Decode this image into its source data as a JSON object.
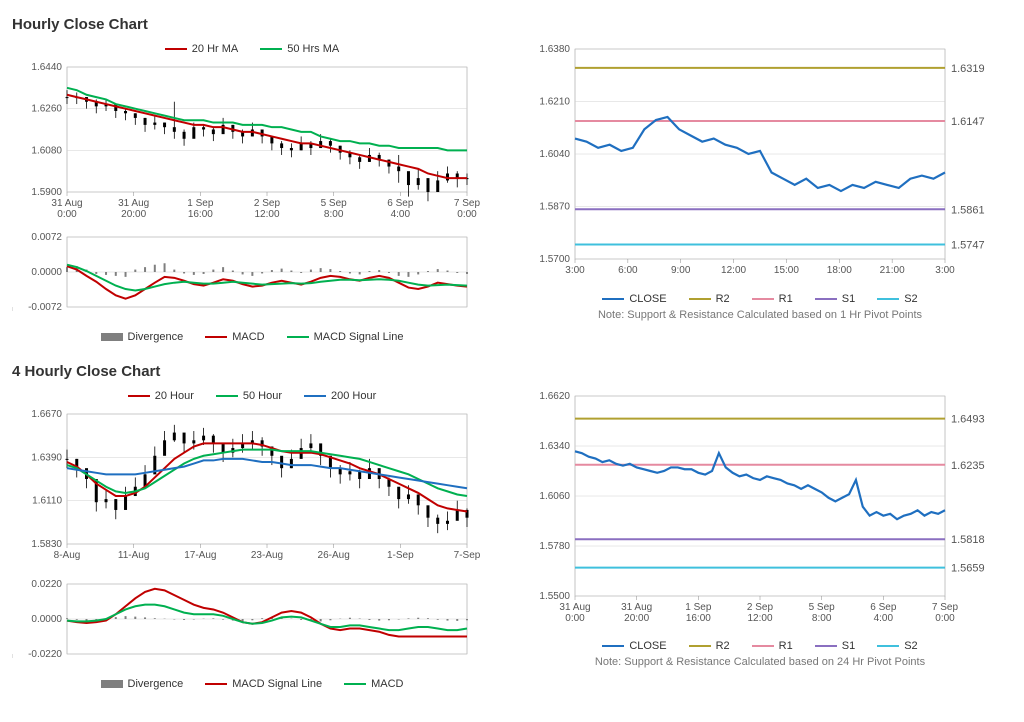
{
  "colors": {
    "red": "#c00000",
    "green": "#00b050",
    "blue": "#1f6fc0",
    "olive": "#b0a030",
    "pink": "#e58aa0",
    "violet": "#8a6fc0",
    "cyan": "#3fc0dd",
    "grey": "#7f7f7f",
    "grid": "#d0d0d0",
    "text": "#555",
    "black": "#000"
  },
  "section1": {
    "title": "Hourly Close Chart",
    "price": {
      "legend": [
        {
          "label": "20 Hr MA",
          "color": "red"
        },
        {
          "label": "50 Hrs MA",
          "color": "green"
        }
      ],
      "ylim": [
        1.59,
        1.644
      ],
      "ytick": 0.018,
      "xticks": [
        "31 Aug\n0:00",
        "31 Aug\n20:00",
        "1 Sep\n16:00",
        "2 Sep\n12:00",
        "5 Sep\n8:00",
        "6 Sep\n4:00",
        "7 Sep\n0:00"
      ],
      "close": [
        1.631,
        1.631,
        1.629,
        1.627,
        1.628,
        1.625,
        1.624,
        1.622,
        1.619,
        1.62,
        1.618,
        1.616,
        1.613,
        1.618,
        1.617,
        1.615,
        1.619,
        1.616,
        1.614,
        1.617,
        1.614,
        1.611,
        1.609,
        1.608,
        1.611,
        1.609,
        1.612,
        1.61,
        1.607,
        1.605,
        1.603,
        1.606,
        1.604,
        1.601,
        1.599,
        1.593,
        1.596,
        1.59,
        1.595,
        1.598,
        1.596,
        1.596
      ],
      "high": [
        1.634,
        1.633,
        1.631,
        1.63,
        1.63,
        1.627,
        1.626,
        1.624,
        1.622,
        1.623,
        1.62,
        1.629,
        1.617,
        1.62,
        1.619,
        1.618,
        1.622,
        1.619,
        1.617,
        1.62,
        1.617,
        1.614,
        1.612,
        1.611,
        1.614,
        1.612,
        1.615,
        1.613,
        1.61,
        1.608,
        1.606,
        1.609,
        1.607,
        1.604,
        1.606,
        1.597,
        1.6,
        1.594,
        1.599,
        1.601,
        1.599,
        1.598
      ],
      "low": [
        1.628,
        1.628,
        1.626,
        1.624,
        1.625,
        1.622,
        1.621,
        1.619,
        1.616,
        1.617,
        1.615,
        1.613,
        1.61,
        1.615,
        1.614,
        1.612,
        1.616,
        1.613,
        1.611,
        1.614,
        1.611,
        1.608,
        1.606,
        1.605,
        1.608,
        1.606,
        1.609,
        1.607,
        1.604,
        1.602,
        1.6,
        1.603,
        1.601,
        1.598,
        1.594,
        1.588,
        1.591,
        1.586,
        1.59,
        1.594,
        1.592,
        1.593
      ],
      "ma20": [
        1.632,
        1.631,
        1.63,
        1.629,
        1.628,
        1.627,
        1.626,
        1.625,
        1.624,
        1.623,
        1.622,
        1.621,
        1.62,
        1.619,
        1.619,
        1.618,
        1.618,
        1.617,
        1.616,
        1.616,
        1.615,
        1.614,
        1.613,
        1.612,
        1.611,
        1.611,
        1.61,
        1.609,
        1.608,
        1.607,
        1.606,
        1.605,
        1.604,
        1.603,
        1.602,
        1.601,
        1.6,
        1.598,
        1.597,
        1.596,
        1.596,
        1.596
      ],
      "ma50": [
        1.635,
        1.634,
        1.632,
        1.631,
        1.63,
        1.628,
        1.627,
        1.626,
        1.625,
        1.624,
        1.623,
        1.622,
        1.621,
        1.621,
        1.621,
        1.62,
        1.62,
        1.62,
        1.619,
        1.619,
        1.619,
        1.618,
        1.618,
        1.617,
        1.616,
        1.616,
        1.614,
        1.613,
        1.612,
        1.612,
        1.611,
        1.611,
        1.61,
        1.61,
        1.609,
        1.609,
        1.609,
        1.609,
        1.609,
        1.608,
        1.608,
        1.608
      ]
    },
    "macd": {
      "ylim": [
        -0.0072,
        0.0072
      ],
      "ytick": 0.0072,
      "legend": [
        {
          "label": "Divergence",
          "color": "grey",
          "bar": true
        },
        {
          "label": "MACD",
          "color": "red"
        },
        {
          "label": "MACD Signal Line",
          "color": "green"
        }
      ],
      "div": [
        0.001,
        0.0012,
        0.0005,
        -0.0004,
        -0.0006,
        -0.0008,
        -0.001,
        0.0005,
        0.001,
        0.0015,
        0.0018,
        0.0005,
        -0.0003,
        -0.0006,
        -0.0004,
        0.0005,
        0.001,
        0.0003,
        -0.0005,
        -0.0008,
        -0.0003,
        0.0004,
        0.0007,
        0.0003,
        -0.0002,
        0.0005,
        0.0008,
        0.0006,
        0.0002,
        -0.0003,
        -0.0005,
        0.0002,
        0.0004,
        -0.0002,
        -0.0008,
        -0.001,
        -0.0005,
        0.0002,
        0.0006,
        0.0003,
        -0.0002,
        -0.0004
      ],
      "macd": [
        0.0012,
        0.0005,
        -0.0008,
        -0.002,
        -0.0035,
        -0.0048,
        -0.0055,
        -0.0048,
        -0.0035,
        -0.0022,
        -0.001,
        -0.0012,
        -0.0018,
        -0.0025,
        -0.0028,
        -0.0022,
        -0.0015,
        -0.0018,
        -0.0025,
        -0.003,
        -0.0028,
        -0.0022,
        -0.0018,
        -0.0022,
        -0.0026,
        -0.002,
        -0.0012,
        -0.0008,
        -0.001,
        -0.0015,
        -0.0018,
        -0.0012,
        -0.0008,
        -0.0012,
        -0.0022,
        -0.0032,
        -0.0035,
        -0.003,
        -0.0022,
        -0.0025,
        -0.0028,
        -0.003
      ],
      "sig": [
        0.0015,
        0.001,
        0.0002,
        -0.0008,
        -0.0018,
        -0.0028,
        -0.0035,
        -0.0038,
        -0.0035,
        -0.003,
        -0.0025,
        -0.0022,
        -0.002,
        -0.0022,
        -0.0024,
        -0.0024,
        -0.0022,
        -0.002,
        -0.0022,
        -0.0024,
        -0.0026,
        -0.0025,
        -0.0024,
        -0.0023,
        -0.0024,
        -0.0023,
        -0.002,
        -0.0018,
        -0.0016,
        -0.0016,
        -0.0017,
        -0.0016,
        -0.0015,
        -0.0016,
        -0.0018,
        -0.0022,
        -0.0026,
        -0.0028,
        -0.0027,
        -0.0026,
        -0.0027,
        -0.0028
      ]
    },
    "sr": {
      "ylim": [
        1.57,
        1.638
      ],
      "ytick": 0.017,
      "xticks": [
        "3:00",
        "6:00",
        "9:00",
        "12:00",
        "15:00",
        "18:00",
        "21:00",
        "3:00"
      ],
      "note": "Note: Support & Resistance Calculated based on 1 Hr Pivot Points",
      "legend": [
        {
          "label": "CLOSE",
          "color": "blue"
        },
        {
          "label": "R2",
          "color": "olive"
        },
        {
          "label": "R1",
          "color": "pink"
        },
        {
          "label": "S1",
          "color": "violet"
        },
        {
          "label": "S2",
          "color": "cyan"
        }
      ],
      "levels": {
        "R2": 1.6319,
        "R1": 1.6147,
        "S1": 1.5861,
        "S2": 1.5747
      },
      "close": [
        1.609,
        1.608,
        1.606,
        1.607,
        1.605,
        1.606,
        1.612,
        1.615,
        1.616,
        1.612,
        1.61,
        1.608,
        1.609,
        1.607,
        1.606,
        1.604,
        1.605,
        1.598,
        1.596,
        1.594,
        1.596,
        1.593,
        1.594,
        1.592,
        1.594,
        1.593,
        1.595,
        1.594,
        1.593,
        1.596,
        1.597,
        1.596,
        1.598
      ]
    }
  },
  "section2": {
    "title": "4 Hourly Close Chart",
    "price": {
      "legend": [
        {
          "label": "20 Hour",
          "color": "red"
        },
        {
          "label": "50 Hour",
          "color": "green"
        },
        {
          "label": "200 Hour",
          "color": "blue"
        }
      ],
      "ylim": [
        1.583,
        1.667
      ],
      "ytick": 0.028,
      "xticks": [
        "8-Aug",
        "11-Aug",
        "17-Aug",
        "23-Aug",
        "26-Aug",
        "1-Sep",
        "7-Sep"
      ],
      "close": [
        1.638,
        1.632,
        1.625,
        1.61,
        1.612,
        1.605,
        1.614,
        1.62,
        1.628,
        1.64,
        1.65,
        1.655,
        1.648,
        1.65,
        1.653,
        1.648,
        1.642,
        1.645,
        1.648,
        1.65,
        1.646,
        1.64,
        1.632,
        1.638,
        1.645,
        1.648,
        1.64,
        1.632,
        1.628,
        1.63,
        1.625,
        1.632,
        1.625,
        1.62,
        1.612,
        1.615,
        1.608,
        1.6,
        1.596,
        1.598,
        1.605,
        1.6
      ],
      "high": [
        1.644,
        1.638,
        1.631,
        1.616,
        1.618,
        1.612,
        1.62,
        1.626,
        1.634,
        1.646,
        1.656,
        1.66,
        1.654,
        1.656,
        1.658,
        1.654,
        1.648,
        1.651,
        1.654,
        1.656,
        1.652,
        1.646,
        1.638,
        1.644,
        1.651,
        1.654,
        1.646,
        1.638,
        1.634,
        1.636,
        1.631,
        1.638,
        1.631,
        1.626,
        1.618,
        1.621,
        1.614,
        1.606,
        1.602,
        1.604,
        1.611,
        1.606
      ],
      "low": [
        1.632,
        1.626,
        1.619,
        1.604,
        1.606,
        1.599,
        1.608,
        1.614,
        1.622,
        1.634,
        1.644,
        1.649,
        1.642,
        1.644,
        1.647,
        1.642,
        1.636,
        1.639,
        1.642,
        1.644,
        1.64,
        1.634,
        1.626,
        1.632,
        1.639,
        1.642,
        1.634,
        1.626,
        1.622,
        1.624,
        1.619,
        1.626,
        1.619,
        1.614,
        1.606,
        1.609,
        1.602,
        1.594,
        1.59,
        1.592,
        1.599,
        1.594
      ],
      "ma20": [
        1.636,
        1.633,
        1.628,
        1.622,
        1.618,
        1.614,
        1.614,
        1.616,
        1.62,
        1.626,
        1.632,
        1.638,
        1.642,
        1.646,
        1.648,
        1.648,
        1.648,
        1.648,
        1.648,
        1.648,
        1.647,
        1.645,
        1.643,
        1.642,
        1.642,
        1.642,
        1.641,
        1.639,
        1.637,
        1.635,
        1.632,
        1.63,
        1.628,
        1.625,
        1.622,
        1.619,
        1.616,
        1.612,
        1.608,
        1.606,
        1.605,
        1.604
      ],
      "ma50": [
        1.634,
        1.632,
        1.628,
        1.624,
        1.62,
        1.617,
        1.616,
        1.617,
        1.619,
        1.623,
        1.627,
        1.631,
        1.635,
        1.638,
        1.64,
        1.641,
        1.642,
        1.643,
        1.644,
        1.644,
        1.644,
        1.644,
        1.643,
        1.643,
        1.643,
        1.643,
        1.642,
        1.641,
        1.64,
        1.639,
        1.638,
        1.636,
        1.634,
        1.632,
        1.63,
        1.628,
        1.625,
        1.622,
        1.619,
        1.617,
        1.615,
        1.614
      ],
      "ma200": [
        1.632,
        1.631,
        1.63,
        1.629,
        1.628,
        1.628,
        1.628,
        1.628,
        1.629,
        1.63,
        1.631,
        1.632,
        1.633,
        1.635,
        1.637,
        1.637,
        1.638,
        1.638,
        1.638,
        1.637,
        1.636,
        1.636,
        1.635,
        1.634,
        1.634,
        1.634,
        1.633,
        1.632,
        1.632,
        1.631,
        1.63,
        1.629,
        1.628,
        1.627,
        1.626,
        1.625,
        1.624,
        1.623,
        1.622,
        1.621,
        1.62,
        1.619
      ]
    },
    "macd": {
      "ylim": [
        -0.022,
        0.022
      ],
      "ytick": 0.022,
      "legend": [
        {
          "label": "Divergence",
          "color": "grey",
          "bar": true
        },
        {
          "label": "MACD Signal Line",
          "color": "red"
        },
        {
          "label": "MACD",
          "color": "green"
        }
      ],
      "div": [
        0.0005,
        -0.0005,
        -0.001,
        -0.0006,
        0.0005,
        0.0012,
        0.0018,
        0.0015,
        0.001,
        0.0005,
        0.0002,
        -0.0003,
        -0.0006,
        -0.0003,
        0.0002,
        0.0004,
        -0.0004,
        -0.001,
        -0.0015,
        -0.0008,
        0.0005,
        0.001,
        0.0008,
        0.0002,
        -0.0006,
        -0.001,
        -0.0015,
        -0.0008,
        0.0002,
        0.0008,
        0.0003,
        -0.0006,
        -0.001,
        -0.0008,
        -0.0003,
        0.0004,
        0.0008,
        0.0005,
        -0.0005,
        -0.001,
        -0.0012,
        -0.0008
      ],
      "sig": [
        -0.001,
        -0.002,
        -0.0025,
        -0.002,
        -0.001,
        0.003,
        0.008,
        0.013,
        0.017,
        0.019,
        0.018,
        0.015,
        0.012,
        0.009,
        0.007,
        0.006,
        0.004,
        0.001,
        -0.002,
        -0.003,
        -0.002,
        0.001,
        0.004,
        0.005,
        0.004,
        0.001,
        -0.003,
        -0.006,
        -0.007,
        -0.006,
        -0.006,
        -0.007,
        -0.008,
        -0.01,
        -0.011,
        -0.011,
        -0.011,
        -0.011,
        -0.011,
        -0.011,
        -0.011,
        -0.011
      ],
      "macd": [
        -0.001,
        -0.0015,
        -0.0015,
        -0.001,
        0,
        0.003,
        0.006,
        0.008,
        0.009,
        0.009,
        0.008,
        0.006,
        0.004,
        0.003,
        0.003,
        0.003,
        0.002,
        0,
        -0.002,
        -0.003,
        -0.0025,
        -0.001,
        0.001,
        0.0015,
        0.001,
        -0.001,
        -0.003,
        -0.005,
        -0.005,
        -0.004,
        -0.004,
        -0.005,
        -0.006,
        -0.007,
        -0.007,
        -0.006,
        -0.005,
        -0.005,
        -0.006,
        -0.007,
        -0.007,
        -0.006
      ]
    },
    "sr": {
      "ylim": [
        1.55,
        1.662
      ],
      "ytick": 0.028,
      "xticks": [
        "31 Aug\n0:00",
        "31 Aug\n20:00",
        "1 Sep\n16:00",
        "2 Sep\n12:00",
        "5 Sep\n8:00",
        "6 Sep\n4:00",
        "7 Sep\n0:00"
      ],
      "note": "Note: Support & Resistance Calculated based on 24 Hr Pivot Points",
      "legend": [
        {
          "label": "CLOSE",
          "color": "blue"
        },
        {
          "label": "R2",
          "color": "olive"
        },
        {
          "label": "R1",
          "color": "pink"
        },
        {
          "label": "S1",
          "color": "violet"
        },
        {
          "label": "S2",
          "color": "cyan"
        }
      ],
      "levels": {
        "R2": 1.6493,
        "R1": 1.6235,
        "S1": 1.5818,
        "S2": 1.5659
      },
      "close": [
        1.631,
        1.63,
        1.628,
        1.627,
        1.625,
        1.626,
        1.624,
        1.623,
        1.624,
        1.622,
        1.621,
        1.62,
        1.619,
        1.62,
        1.622,
        1.622,
        1.621,
        1.621,
        1.619,
        1.618,
        1.62,
        1.63,
        1.622,
        1.619,
        1.617,
        1.618,
        1.616,
        1.615,
        1.617,
        1.616,
        1.615,
        1.613,
        1.612,
        1.61,
        1.612,
        1.61,
        1.608,
        1.605,
        1.603,
        1.605,
        1.607,
        1.615,
        1.6,
        1.595,
        1.597,
        1.595,
        1.596,
        1.593,
        1.595,
        1.596,
        1.598,
        1.595,
        1.597,
        1.596,
        1.598
      ]
    }
  }
}
